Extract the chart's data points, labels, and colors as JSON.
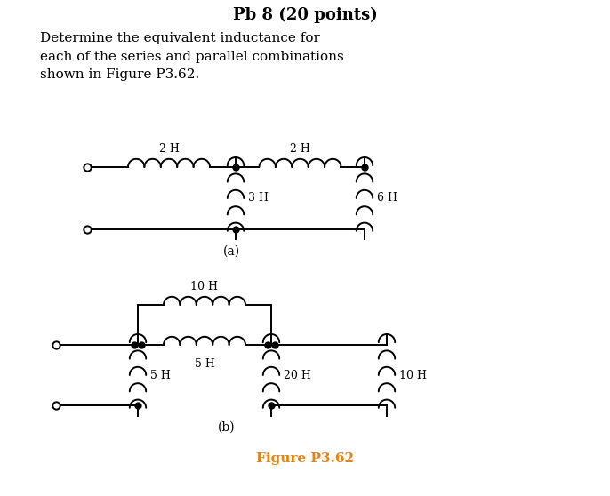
{
  "title": "Pb 8 (20 points)",
  "title_fontsize": 13,
  "body_text": "Determine the equivalent inductance for\neach of the series and parallel combinations\nshown in Figure P3.62.",
  "body_fontsize": 11,
  "label_a": "(a)",
  "label_b": "(b)",
  "figure_label": "Figure P3.62",
  "figure_label_color": "#E8820C",
  "figure_label_fontsize": 11,
  "bg_color": "#ffffff",
  "line_color": "#000000",
  "lw": 1.4
}
